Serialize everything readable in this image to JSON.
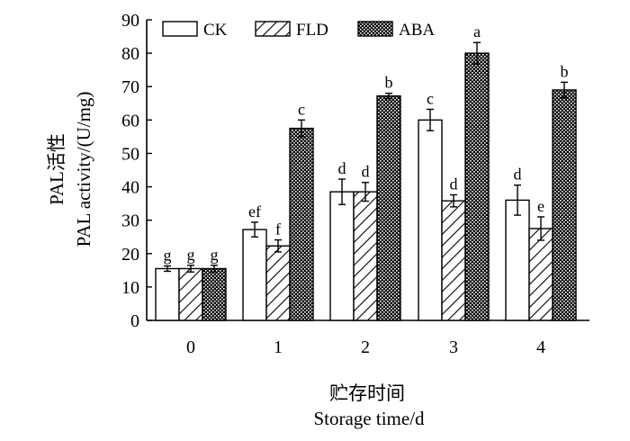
{
  "chart_data": {
    "type": "bar",
    "categories": [
      "0",
      "1",
      "2",
      "3",
      "4"
    ],
    "series": [
      {
        "name": "CK",
        "values": [
          15.5,
          27.2,
          38.5,
          60.0,
          36.0
        ],
        "errors": [
          0.8,
          2.2,
          3.8,
          3.2,
          4.5
        ],
        "letters": [
          "g",
          "ef",
          "d",
          "c",
          "d"
        ],
        "pattern": "blank"
      },
      {
        "name": "FLD",
        "values": [
          15.5,
          22.3,
          38.5,
          35.8,
          27.5
        ],
        "errors": [
          1.0,
          1.8,
          2.8,
          1.8,
          3.5
        ],
        "letters": [
          "g",
          "f",
          "d",
          "d",
          "e"
        ],
        "pattern": "hatch"
      },
      {
        "name": "ABA",
        "values": [
          15.5,
          57.5,
          67.2,
          80.0,
          69.0
        ],
        "errors": [
          1.0,
          2.5,
          0.8,
          3.2,
          2.3
        ],
        "letters": [
          "g",
          "c",
          "b",
          "a",
          "b"
        ],
        "pattern": "dots"
      }
    ],
    "ylim": [
      0,
      90
    ],
    "yticks": [
      0,
      10,
      20,
      30,
      40,
      50,
      60,
      70,
      80,
      90
    ],
    "ylabel_cn": "PAL活性",
    "ylabel_en": "PAL activity/(U/mg)",
    "xlabel_cn": "贮存时间",
    "xlabel_en": "Storage time/d",
    "legend_position": "top"
  }
}
